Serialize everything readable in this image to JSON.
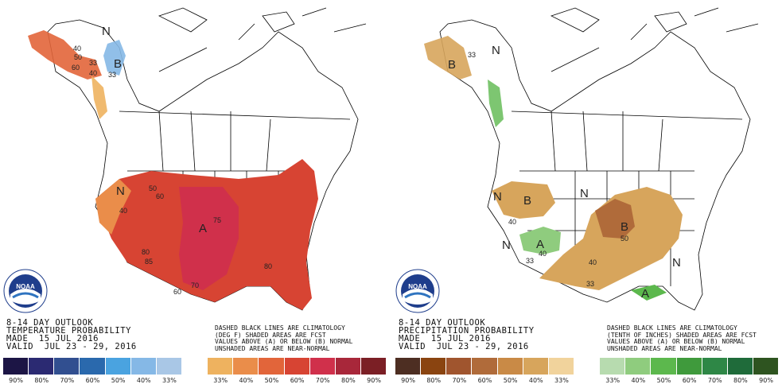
{
  "temperature_panel": {
    "info": {
      "line1": "8-14 DAY OUTLOOK",
      "line2": "TEMPERATURE PROBABILITY",
      "line3": "MADE  15 JUL 2016",
      "line4": "VALID  JUL 23 - 29, 2016"
    },
    "legend_note": {
      "line1": "DASHED BLACK LINES ARE CLIMATOLOGY",
      "line2": "(DEG F) SHADED AREAS ARE FCST",
      "line3": "VALUES ABOVE (A) OR BELOW (B) NORMAL",
      "line4": "UNSHADED AREAS ARE NEAR-NORMAL"
    },
    "map_labels": {
      "above": "A",
      "below": "B",
      "normal_west": "N",
      "normal_arctic": "N",
      "p50_alaska": "50",
      "p33_alaska": "33",
      "p40_alaska": "40",
      "p40_alaska2": "40",
      "p60_alaska": "60",
      "p33_canada": "33",
      "p50_nw": "50",
      "p60_nw": "60",
      "p40_west": "40",
      "p70_south": "70",
      "p60_texas": "60",
      "p75_plains": "75",
      "p80_west": "80",
      "p85_sw": "85",
      "p80_east": "80"
    },
    "scale_colors": [
      "#1c1545",
      "#2b2a72",
      "#314f90",
      "#2a69ad",
      "#4aa3e0",
      "#85b8e6",
      "#a9c7e6",
      "#ffffff",
      "#eeb25f",
      "#ea8d4a",
      "#e2653a",
      "#d74433",
      "#d0304b",
      "#a8273a",
      "#7b1f25"
    ],
    "scale_labels": [
      "90%",
      "80%",
      "70%",
      "60%",
      "50%",
      "40%",
      "33%",
      "",
      "33%",
      "40%",
      "50%",
      "60%",
      "70%",
      "80%",
      "90%"
    ]
  },
  "precipitation_panel": {
    "info": {
      "line1": "8-14 DAY OUTLOOK",
      "line2": "PRECIPITATION PROBABILITY",
      "line3": "MADE  15 JUL 2016",
      "line4": "VALID  JUL 23 - 29, 2016"
    },
    "legend_note": {
      "line1": "DASHED BLACK LINES ARE CLIMATOLOGY",
      "line2": "(TENTH OF INCHES) SHADED AREAS ARE FCST",
      "line3": "VALUES ABOVE (A) OR BELOW (B) NORMAL",
      "line4": "UNSHADED AREAS ARE NEAR-NORMAL"
    },
    "map_labels": {
      "below_central": "B",
      "below_west": "B",
      "below_alaska": "B",
      "above_sw": "A",
      "above_se": "A",
      "normal_west": "N",
      "normal_north": "N",
      "normal_se": "N",
      "normal_alaska": "N",
      "normal_sw": "N",
      "p33_alaska": "33",
      "p40_west": "40",
      "p40_sw": "40",
      "p33_sw": "33",
      "p50_central": "50",
      "p40_south": "40",
      "p33_south": "33"
    },
    "scale_colors": [
      "#4d2e22",
      "#8a4410",
      "#a0552e",
      "#b06b3a",
      "#c98a46",
      "#d7a55c",
      "#f1d39c",
      "#ffffff",
      "#b7dbaf",
      "#8fcc7e",
      "#5cb84d",
      "#3f9a3c",
      "#2e8746",
      "#1f6b3a",
      "#2e5420"
    ],
    "scale_labels": [
      "90%",
      "80%",
      "70%",
      "60%",
      "50%",
      "40%",
      "33%",
      "",
      "33%",
      "40%",
      "50%",
      "60%",
      "70%",
      "80%",
      "90%"
    ]
  },
  "logo": {
    "text": "NOAA"
  },
  "colors": {
    "ocean": "#ffffff",
    "border": "#000000"
  }
}
